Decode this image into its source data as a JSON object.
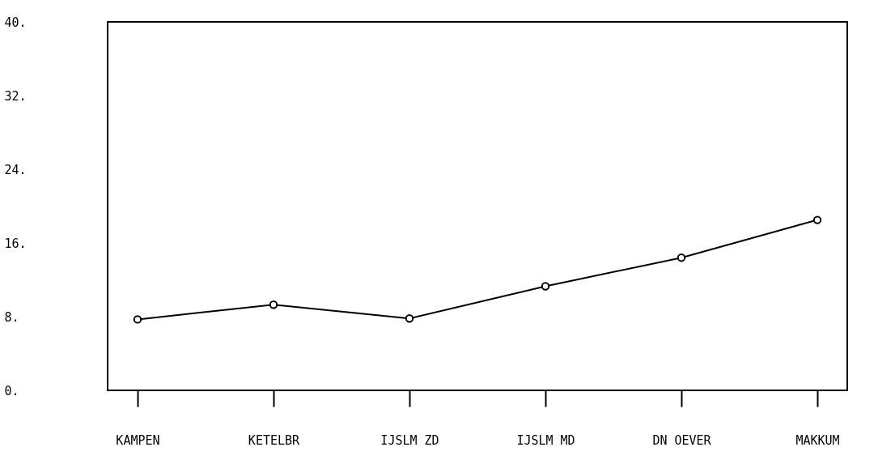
{
  "chart_data": {
    "type": "line",
    "categories": [
      "KAMPEN",
      "KETELBR",
      "IJSLM ZD",
      "IJSLM MD",
      "DN OEVER",
      "MAKKUM"
    ],
    "series": [
      {
        "color": "#000000",
        "values": [
          7.7,
          9.3,
          7.8,
          11.3,
          14.4,
          18.5
        ]
      }
    ],
    "ylim": [
      0,
      40
    ],
    "yticks": [
      {
        "value": 0,
        "label": "0."
      },
      {
        "value": 8,
        "label": "8."
      },
      {
        "value": 16,
        "label": "16."
      },
      {
        "value": 24,
        "label": "24."
      },
      {
        "value": 32,
        "label": "32."
      },
      {
        "value": 40,
        "label": "40."
      }
    ],
    "grid": false,
    "marker": "circle",
    "line_style": "solid",
    "legend": false
  }
}
